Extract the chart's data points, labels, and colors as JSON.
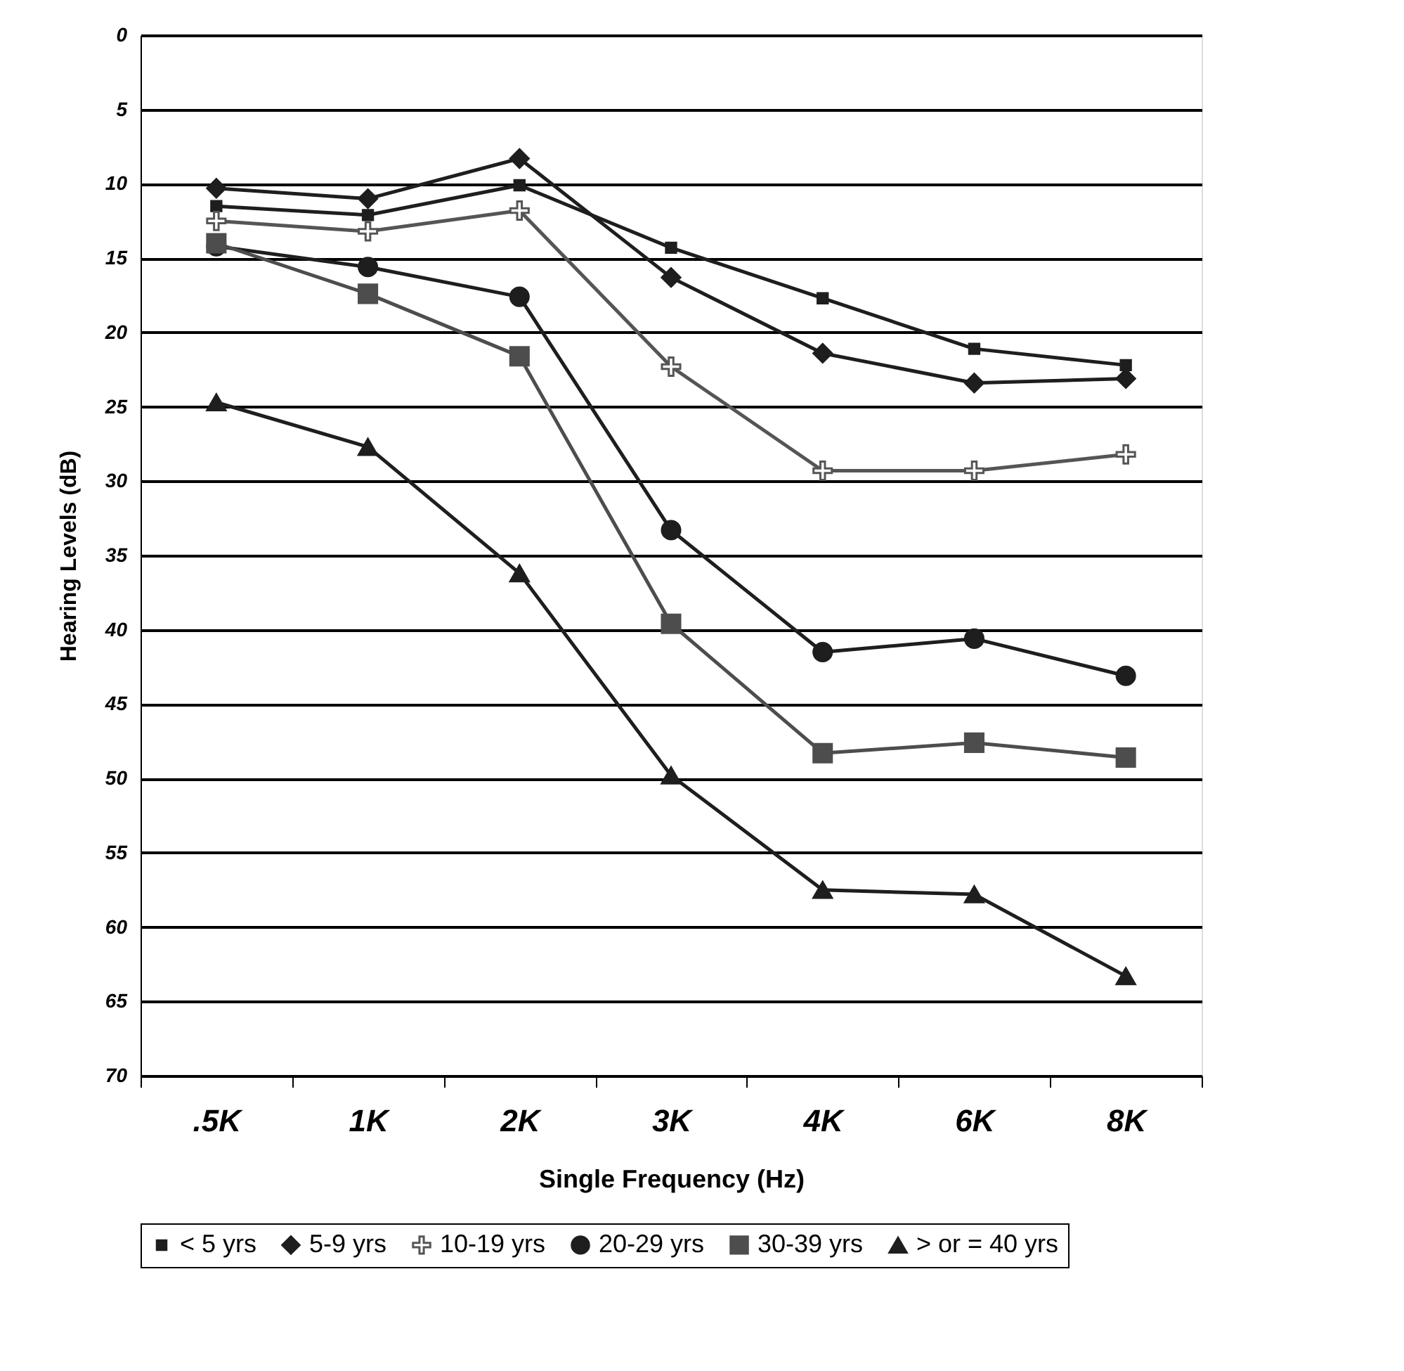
{
  "chart_data": {
    "type": "line",
    "categories": [
      ".5K",
      "1K",
      "2K",
      "3K",
      "4K",
      "6K",
      "8K"
    ],
    "xlabel": "Single Frequency (Hz)",
    "ylabel": "Hearing Levels (dB)",
    "ylim": [
      70,
      0
    ],
    "yticks": [
      0,
      5,
      10,
      15,
      20,
      25,
      30,
      35,
      40,
      45,
      50,
      55,
      60,
      65,
      70
    ],
    "grid": "y",
    "legend": "bottom",
    "line_style": "solid",
    "series": [
      {
        "name": "< 5 yrs",
        "color": "#1e1e1e",
        "marker": "square",
        "values": [
          11.5,
          12.1,
          10.1,
          14.3,
          17.7,
          21.1,
          22.2
        ]
      },
      {
        "name": "5-9 yrs",
        "color": "#1e1e1e",
        "marker": "diamond",
        "values": [
          10.3,
          11.0,
          8.3,
          16.3,
          21.4,
          23.4,
          23.1
        ]
      },
      {
        "name": "10-19 yrs",
        "color": "#555555",
        "marker": "cross",
        "values": [
          12.5,
          13.2,
          11.8,
          22.3,
          29.3,
          29.3,
          28.2
        ]
      },
      {
        "name": "20-29 yrs",
        "color": "#1e1e1e",
        "marker": "circle",
        "values": [
          14.2,
          15.6,
          17.6,
          33.3,
          41.5,
          40.6,
          43.1
        ]
      },
      {
        "name": "30-39 yrs",
        "color": "#4d4d4d",
        "marker": "square",
        "values": [
          14.0,
          17.4,
          21.6,
          39.6,
          48.3,
          47.6,
          48.6
        ]
      },
      {
        "name": "> or = 40 yrs",
        "color": "#1e1e1e",
        "marker": "triangle",
        "values": [
          24.7,
          27.7,
          36.2,
          49.8,
          57.5,
          57.8,
          63.3
        ]
      }
    ]
  }
}
